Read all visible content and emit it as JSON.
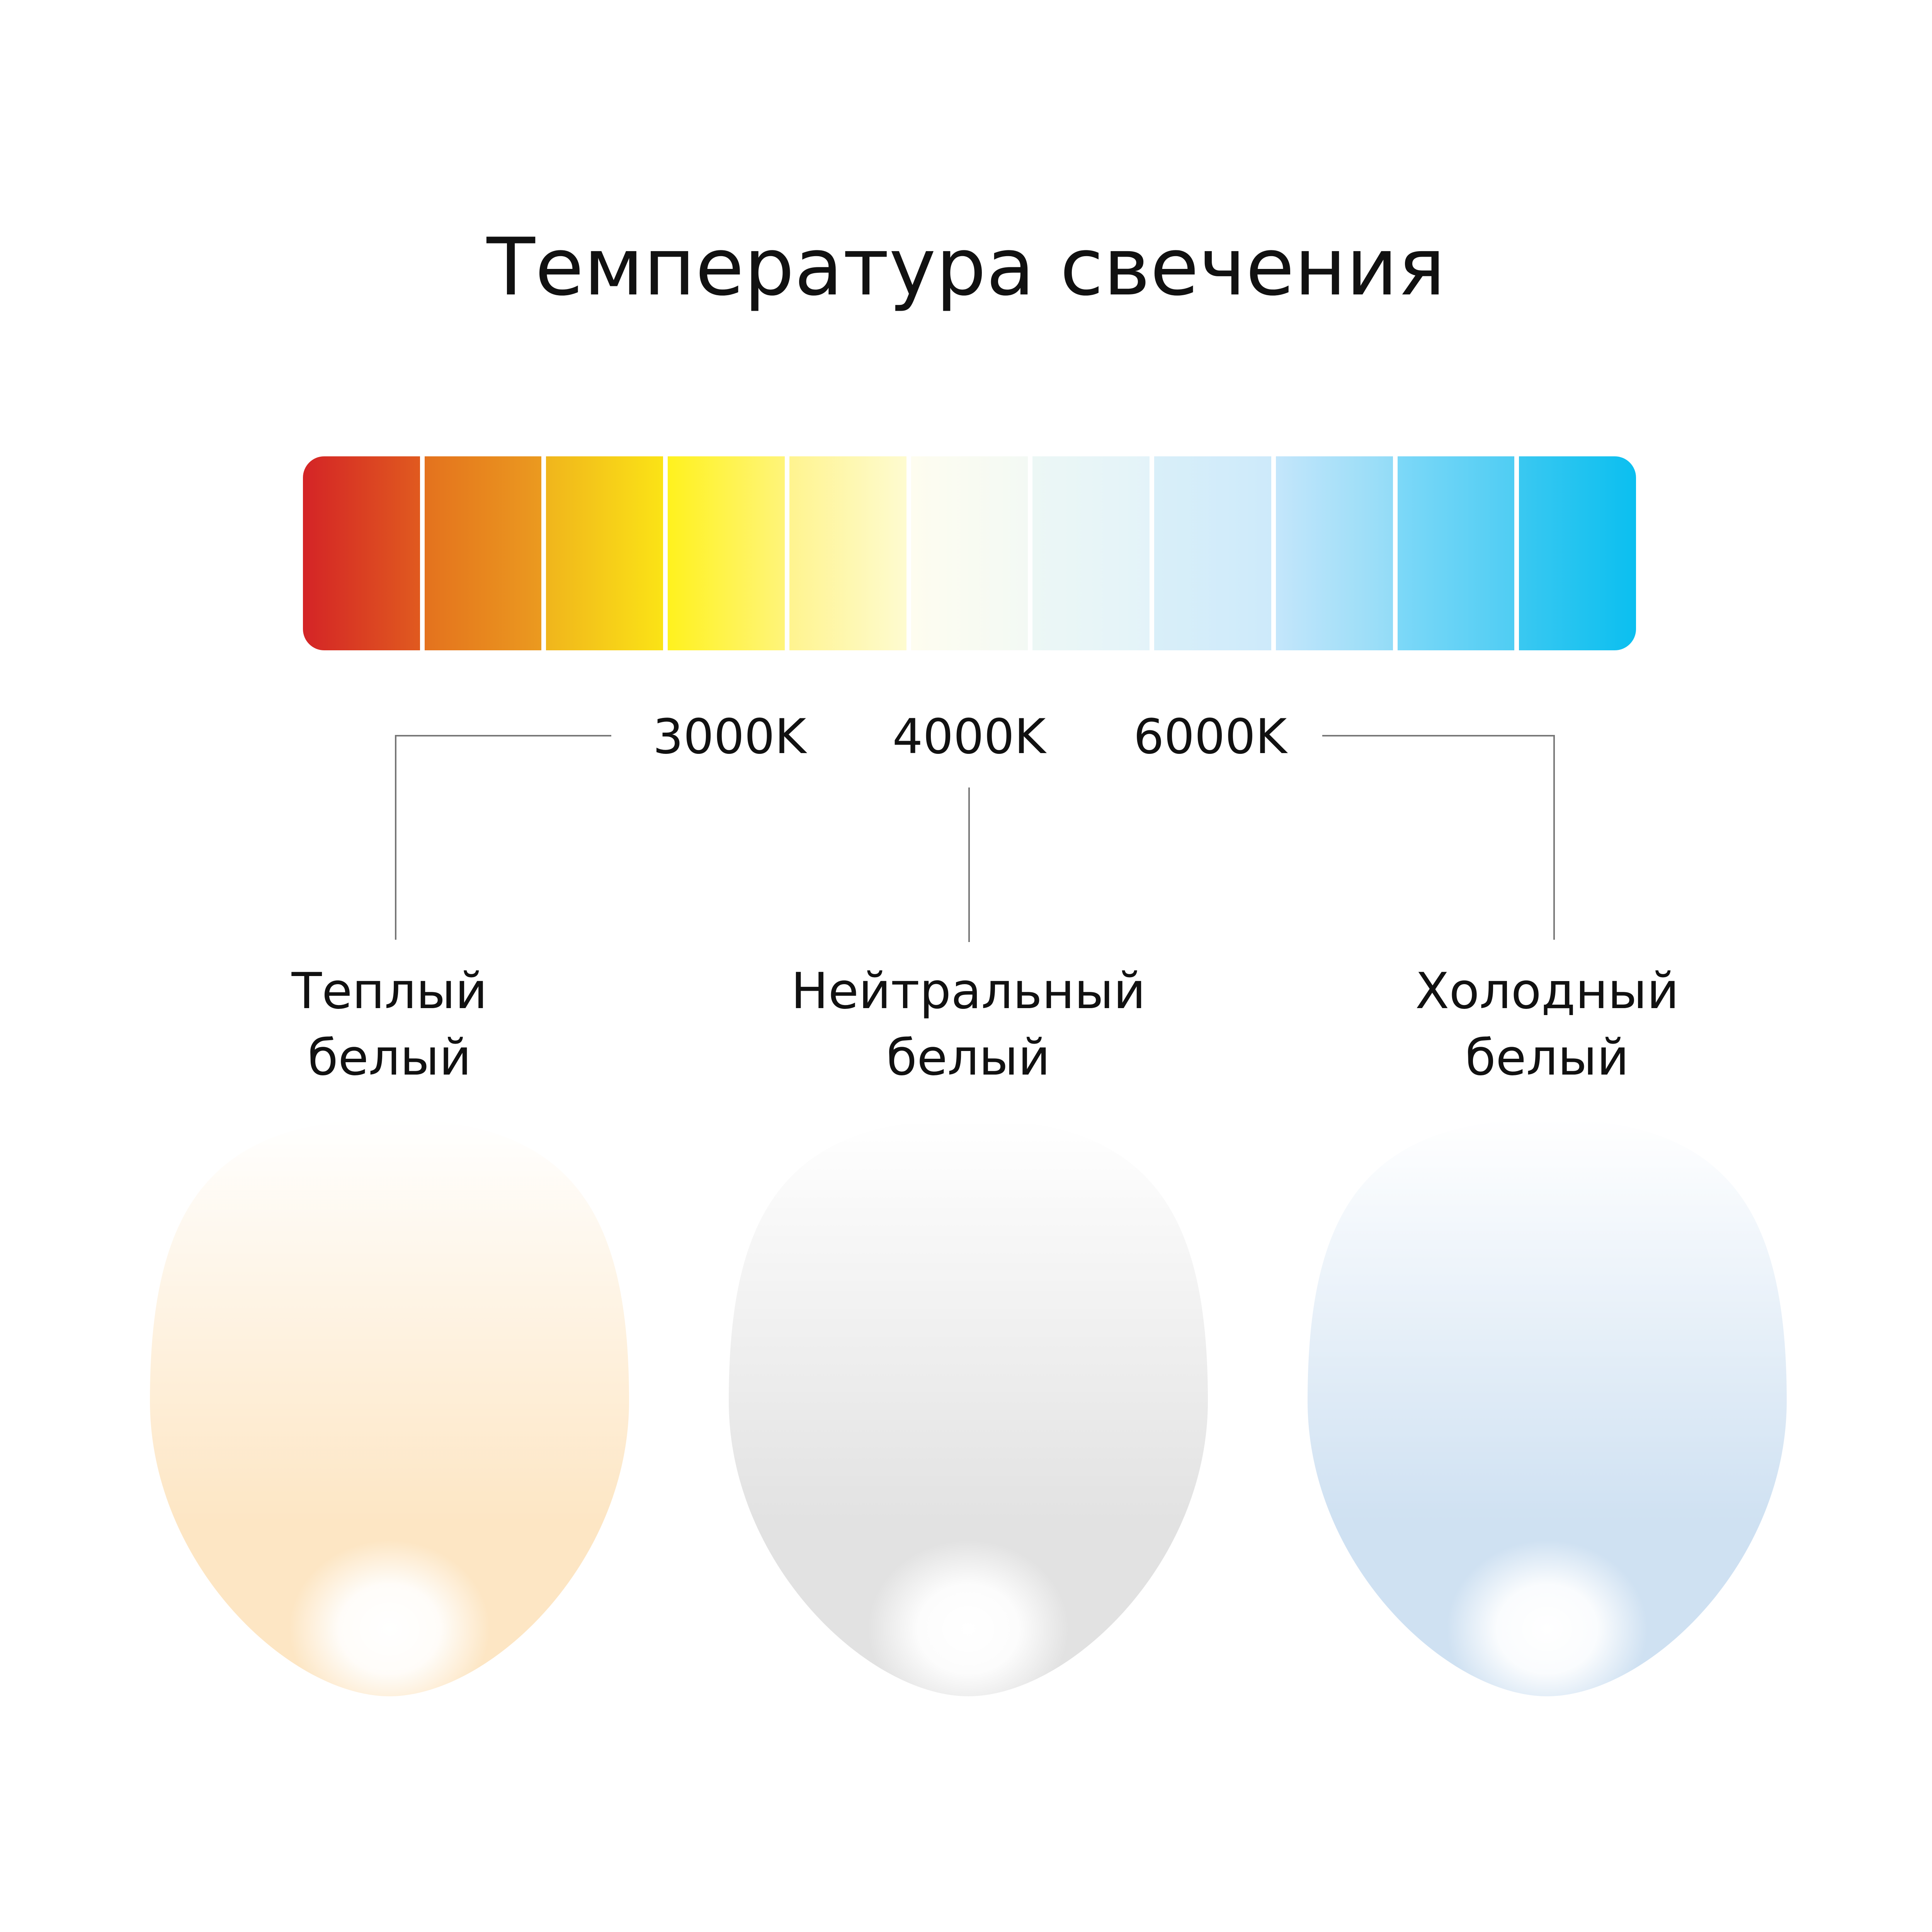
{
  "title": "Температура свечения",
  "scale": {
    "segments": [
      [
        "#d42426",
        "#e05a1f"
      ],
      [
        "#e4721e",
        "#eb9a1f"
      ],
      [
        "#f0b51c",
        "#fbe316"
      ],
      [
        "#fff21e",
        "#fff47a"
      ],
      [
        "#fff48f",
        "#fefbd0"
      ],
      [
        "#fefdf0",
        "#f3f9f4"
      ],
      [
        "#ecf7f5",
        "#e3f3f9"
      ],
      [
        "#d9eff9",
        "#cdeafa"
      ],
      [
        "#c4e6fb",
        "#93dcf7"
      ],
      [
        "#7dd8f8",
        "#4fcdf3"
      ],
      [
        "#3ac8f1",
        "#0bbff0"
      ]
    ],
    "labels": [
      "3000K",
      "4000K",
      "6000K"
    ]
  },
  "types": [
    {
      "line1": "Теплый",
      "line2": "белый",
      "color": "#fde6c4"
    },
    {
      "line1": "Нейтральный",
      "line2": "белый",
      "color": "#e2e2e2"
    },
    {
      "line1": "Холодный",
      "line2": "белый",
      "color": "#cfe1f2"
    }
  ]
}
